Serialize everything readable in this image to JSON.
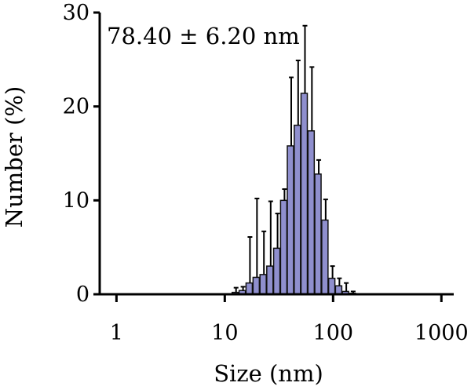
{
  "chart_data": {
    "type": "bar",
    "annotation": "78.40 ± 6.20 nm",
    "xlabel": "Size (nm)",
    "ylabel": "Number (%)",
    "x_scale": "log",
    "xlim": [
      0.7,
      1300
    ],
    "ylim": [
      0,
      30
    ],
    "x_ticks": [
      {
        "value": 1,
        "label": "1"
      },
      {
        "value": 10,
        "label": "10"
      },
      {
        "value": 100,
        "label": "100"
      },
      {
        "value": 1000,
        "label": "1000"
      }
    ],
    "y_ticks": [
      {
        "value": 0,
        "label": "0"
      },
      {
        "value": 10,
        "label": "10"
      },
      {
        "value": 20,
        "label": "20"
      },
      {
        "value": 30,
        "label": "30"
      }
    ],
    "grid": false,
    "colors": {
      "bar": "#8f8fce",
      "axis": "#000000"
    },
    "bars": [
      {
        "x": 12.5,
        "value": 0.2,
        "error": 0.5
      },
      {
        "x": 14.5,
        "value": 0.4,
        "error": 0.4
      },
      {
        "x": 16.8,
        "value": 1.2,
        "error": 4.9
      },
      {
        "x": 19.5,
        "value": 1.8,
        "error": 8.4
      },
      {
        "x": 22.6,
        "value": 2.1,
        "error": 4.6
      },
      {
        "x": 26.1,
        "value": 3.0,
        "error": 6.9
      },
      {
        "x": 30.2,
        "value": 4.9,
        "error": 3.7
      },
      {
        "x": 35.0,
        "value": 10.0,
        "error": 1.2
      },
      {
        "x": 40.4,
        "value": 15.8,
        "error": 7.3
      },
      {
        "x": 46.8,
        "value": 18.0,
        "error": 6.9
      },
      {
        "x": 54.1,
        "value": 21.4,
        "error": 7.2
      },
      {
        "x": 62.7,
        "value": 17.4,
        "error": 6.8
      },
      {
        "x": 72.5,
        "value": 12.8,
        "error": 1.5
      },
      {
        "x": 84.0,
        "value": 7.9,
        "error": 2.2
      },
      {
        "x": 97.2,
        "value": 1.7,
        "error": 1.3
      },
      {
        "x": 112.5,
        "value": 0.9,
        "error": 0.8
      },
      {
        "x": 130.2,
        "value": 0.3,
        "error": 0.9
      },
      {
        "x": 150.7,
        "value": 0.1,
        "error": 0.2
      }
    ]
  }
}
